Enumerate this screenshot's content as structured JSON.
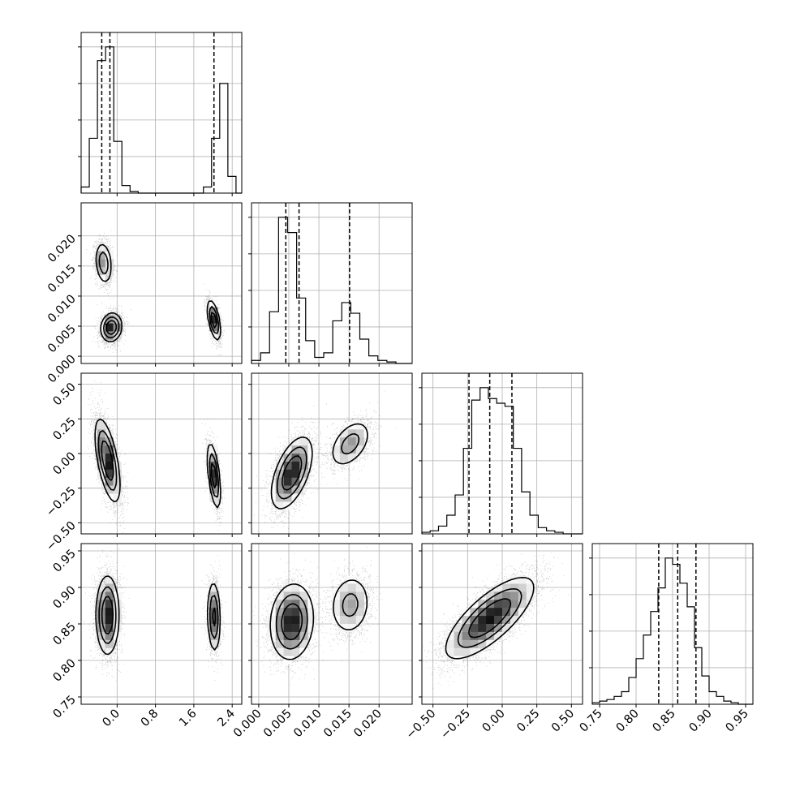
{
  "chart_data": {
    "type": "corner",
    "grid": true,
    "params": [
      {
        "range": [
          -0.75,
          2.6
        ],
        "ticks": [
          -0.0,
          0.8,
          1.6,
          2.4
        ],
        "tick_labels": [
          "0.0",
          "0.8",
          "1.6",
          "2.4"
        ],
        "quantiles": [
          -0.32,
          -0.15,
          2.02
        ],
        "hist": {
          "edges": [
            -0.75,
            -0.58,
            -0.41,
            -0.24,
            -0.07,
            0.1,
            0.27,
            0.44,
            0.61,
            0.78,
            0.95,
            1.12,
            1.29,
            1.46,
            1.63,
            1.8,
            1.97,
            2.14,
            2.31,
            2.48
          ],
          "counts": [
            0.04,
            0.36,
            0.87,
            0.96,
            0.34,
            0.05,
            0.01,
            0,
            0,
            0,
            0,
            0,
            0,
            0,
            0,
            0.04,
            0.36,
            0.72,
            0.11
          ]
        }
      },
      {
        "range": [
          -0.0012,
          0.0255
        ],
        "ticks": [
          0.0,
          0.005,
          0.01,
          0.015,
          0.02
        ],
        "tick_labels": [
          "0.000",
          "0.005",
          "0.010",
          "0.015",
          "0.020"
        ],
        "quantiles": [
          0.0045,
          0.0067,
          0.0151
        ],
        "hist": {
          "edges": [
            -0.0012,
            0.0003,
            0.0018,
            0.0033,
            0.0048,
            0.0063,
            0.0078,
            0.0093,
            0.0108,
            0.0123,
            0.0138,
            0.0153,
            0.0168,
            0.0183,
            0.0198,
            0.0213,
            0.0228,
            0.0243
          ],
          "counts": [
            0.02,
            0.07,
            0.34,
            0.96,
            0.86,
            0.43,
            0.15,
            0.04,
            0.07,
            0.28,
            0.4,
            0.33,
            0.16,
            0.05,
            0.02,
            0.01,
            0
          ]
        }
      },
      {
        "range": [
          -0.58,
          0.58
        ],
        "ticks": [
          -0.5,
          -0.25,
          0.0,
          0.25,
          0.5
        ],
        "tick_labels": [
          "−0.50",
          "−0.25",
          "0.00",
          "0.25",
          "0.50"
        ],
        "quantiles": [
          -0.24,
          -0.09,
          0.07
        ],
        "hist": {
          "edges": [
            -0.58,
            -0.52,
            -0.46,
            -0.4,
            -0.34,
            -0.28,
            -0.22,
            -0.16,
            -0.1,
            -0.04,
            0.02,
            0.08,
            0.14,
            0.2,
            0.26,
            0.32,
            0.38,
            0.44,
            0.5,
            0.56
          ],
          "counts": [
            0.01,
            0.02,
            0.05,
            0.12,
            0.25,
            0.55,
            0.86,
            0.94,
            0.87,
            0.84,
            0.82,
            0.55,
            0.27,
            0.12,
            0.04,
            0.02,
            0.01,
            0,
            0
          ]
        }
      },
      {
        "range": [
          0.74,
          0.96
        ],
        "ticks": [
          0.75,
          0.8,
          0.85,
          0.9,
          0.95
        ],
        "tick_labels": [
          "0.75",
          "0.80",
          "0.85",
          "0.90",
          "0.95"
        ],
        "quantiles": [
          0.831,
          0.857,
          0.882
        ],
        "hist": {
          "edges": [
            0.74,
            0.75,
            0.76,
            0.77,
            0.78,
            0.79,
            0.8,
            0.81,
            0.82,
            0.83,
            0.84,
            0.85,
            0.86,
            0.87,
            0.88,
            0.89,
            0.9,
            0.91,
            0.92,
            0.93,
            0.94,
            0.95
          ],
          "counts": [
            0.01,
            0.02,
            0.03,
            0.05,
            0.08,
            0.17,
            0.29,
            0.44,
            0.59,
            0.74,
            0.93,
            0.89,
            0.77,
            0.62,
            0.36,
            0.18,
            0.08,
            0.05,
            0.02,
            0.01,
            0
          ]
        }
      }
    ],
    "pairs": [
      {
        "row": 1,
        "col": 0,
        "modes": [
          {
            "mean": [
              -0.28,
              0.0155
            ],
            "sd": [
              0.09,
              0.0018
            ],
            "rho": -0.2,
            "weight": 0.3
          },
          {
            "mean": [
              -0.12,
              0.0048
            ],
            "sd": [
              0.11,
              0.0012
            ],
            "rho": 0.1,
            "weight": 0.42
          },
          {
            "mean": [
              2.02,
              0.006
            ],
            "sd": [
              0.07,
              0.0017
            ],
            "rho": -0.55,
            "weight": 0.28
          }
        ]
      },
      {
        "row": 2,
        "col": 0,
        "modes": [
          {
            "mean": [
              -0.2,
              -0.05
            ],
            "sd": [
              0.13,
              0.15
            ],
            "rho": -0.6,
            "weight": 0.72
          },
          {
            "mean": [
              2.02,
              -0.16
            ],
            "sd": [
              0.07,
              0.12
            ],
            "rho": -0.55,
            "weight": 0.28
          }
        ]
      },
      {
        "row": 2,
        "col": 1,
        "modes": [
          {
            "mean": [
              0.0055,
              -0.14
            ],
            "sd": [
              0.0017,
              0.13
            ],
            "rho": 0.55,
            "weight": 0.72
          },
          {
            "mean": [
              0.0152,
              0.07
            ],
            "sd": [
              0.0018,
              0.09
            ],
            "rho": 0.45,
            "weight": 0.28
          }
        ]
      },
      {
        "row": 3,
        "col": 0,
        "modes": [
          {
            "mean": [
              -0.2,
              0.862
            ],
            "sd": [
              0.12,
              0.027
            ],
            "rho": 0.0,
            "weight": 0.72
          },
          {
            "mean": [
              2.02,
              0.86
            ],
            "sd": [
              0.07,
              0.025
            ],
            "rho": -0.1,
            "weight": 0.28
          }
        ]
      },
      {
        "row": 3,
        "col": 1,
        "modes": [
          {
            "mean": [
              0.0055,
              0.853
            ],
            "sd": [
              0.0018,
              0.026
            ],
            "rho": 0.1,
            "weight": 0.72
          },
          {
            "mean": [
              0.0152,
              0.876
            ],
            "sd": [
              0.0018,
              0.022
            ],
            "rho": 0.1,
            "weight": 0.28
          }
        ]
      },
      {
        "row": 3,
        "col": 2,
        "modes": [
          {
            "mean": [
              -0.09,
              0.858
            ],
            "sd": [
              0.16,
              0.028
            ],
            "rho": 0.75,
            "weight": 1.0
          }
        ]
      }
    ]
  }
}
